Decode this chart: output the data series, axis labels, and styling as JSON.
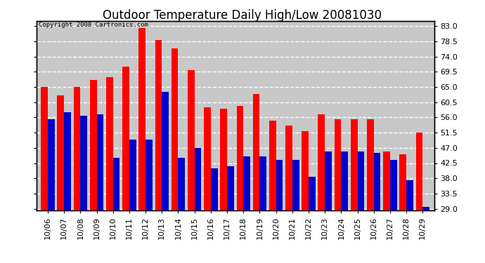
{
  "title": "Outdoor Temperature Daily High/Low 20081030",
  "copyright_text": "Copyright 2008 Cartronics.com",
  "dates": [
    "10/06",
    "10/07",
    "10/08",
    "10/09",
    "10/10",
    "10/11",
    "10/12",
    "10/13",
    "10/14",
    "10/15",
    "10/16",
    "10/17",
    "10/18",
    "10/19",
    "10/20",
    "10/21",
    "10/22",
    "10/23",
    "10/24",
    "10/25",
    "10/26",
    "10/27",
    "10/28",
    "10/29"
  ],
  "highs": [
    65.0,
    62.5,
    65.0,
    67.0,
    68.0,
    71.0,
    82.5,
    79.0,
    76.5,
    70.0,
    59.0,
    58.5,
    59.5,
    63.0,
    55.0,
    53.5,
    52.0,
    57.0,
    55.5,
    55.5,
    55.5,
    46.0,
    45.0,
    51.5
  ],
  "lows": [
    55.5,
    57.5,
    56.5,
    57.0,
    44.0,
    49.5,
    49.5,
    63.5,
    44.0,
    47.0,
    41.0,
    41.5,
    44.5,
    44.5,
    43.5,
    43.5,
    38.5,
    46.0,
    46.0,
    46.0,
    45.5,
    43.5,
    37.5,
    29.5
  ],
  "high_color": "#ff0000",
  "low_color": "#0000cc",
  "bg_color": "#ffffff",
  "plot_bg_color": "#c8c8c8",
  "grid_color": "#ffffff",
  "yticks": [
    29.0,
    33.5,
    38.0,
    42.5,
    47.0,
    51.5,
    56.0,
    60.5,
    65.0,
    69.5,
    74.0,
    78.5,
    83.0
  ],
  "ymin": 28.5,
  "ymax": 84.5,
  "title_fontsize": 12,
  "tick_fontsize": 8,
  "bar_width": 0.42
}
